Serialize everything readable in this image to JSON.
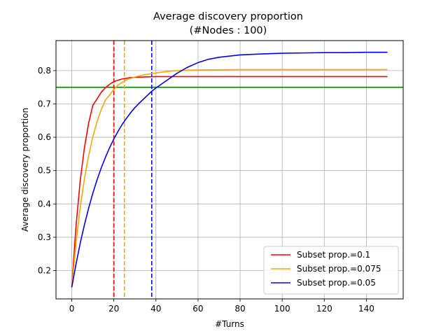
{
  "chart_data": {
    "type": "line",
    "title": "Average discovery proportion",
    "subtitle": "(#Nodes : 100)",
    "xlabel": "#Turns",
    "ylabel": "Average discovery proportion",
    "xlim": [
      -7.5,
      157.5
    ],
    "ylim": [
      0.115,
      0.89
    ],
    "xticks": [
      0,
      20,
      40,
      60,
      80,
      100,
      120,
      140
    ],
    "yticks": [
      0.2,
      0.3,
      0.4,
      0.5,
      0.6,
      0.7,
      0.8
    ],
    "grid": true,
    "legend_position": "bottom-right",
    "series": [
      {
        "name": "Subset prop.=0.1",
        "color": "#ff0000",
        "x": [
          0,
          2,
          4,
          6,
          8,
          10,
          12,
          14,
          16,
          18,
          20,
          22,
          24,
          26,
          28,
          30,
          35,
          40,
          50,
          60,
          80,
          100,
          120,
          150
        ],
        "y": [
          0.15,
          0.333,
          0.469,
          0.568,
          0.642,
          0.696,
          0.715,
          0.735,
          0.749,
          0.759,
          0.767,
          0.771,
          0.775,
          0.777,
          0.779,
          0.78,
          0.781,
          0.782,
          0.782,
          0.782,
          0.782,
          0.782,
          0.782,
          0.782
        ]
      },
      {
        "name": "Subset prop.=0.075",
        "color": "#ffa500",
        "x": [
          0,
          2,
          4,
          6,
          8,
          10,
          12,
          14,
          16,
          18,
          20,
          22,
          24,
          26,
          28,
          30,
          35,
          40,
          45,
          50,
          60,
          80,
          100,
          120,
          150
        ],
        "y": [
          0.15,
          0.282,
          0.389,
          0.475,
          0.545,
          0.601,
          0.647,
          0.683,
          0.712,
          0.727,
          0.744,
          0.757,
          0.765,
          0.772,
          0.777,
          0.781,
          0.788,
          0.793,
          0.797,
          0.8,
          0.802,
          0.803,
          0.803,
          0.803,
          0.803
        ]
      },
      {
        "name": "Subset prop.=0.05",
        "color": "#0000ff",
        "x": [
          0,
          2,
          4,
          6,
          8,
          10,
          12,
          14,
          16,
          18,
          20,
          22,
          24,
          26,
          28,
          30,
          32,
          34,
          36,
          38,
          40,
          45,
          50,
          55,
          60,
          65,
          70,
          80,
          90,
          100,
          110,
          120,
          130,
          140,
          150
        ],
        "y": [
          0.15,
          0.219,
          0.282,
          0.337,
          0.387,
          0.432,
          0.472,
          0.508,
          0.54,
          0.569,
          0.595,
          0.618,
          0.639,
          0.657,
          0.674,
          0.689,
          0.702,
          0.714,
          0.726,
          0.738,
          0.748,
          0.77,
          0.792,
          0.81,
          0.824,
          0.834,
          0.84,
          0.847,
          0.85,
          0.852,
          0.853,
          0.854,
          0.854,
          0.855,
          0.855
        ]
      }
    ],
    "vlines": [
      {
        "x": 20,
        "color": "#ff0000",
        "style": "dashed"
      },
      {
        "x": 25,
        "color": "#ffa500",
        "style": "dashed"
      },
      {
        "x": 38,
        "color": "#0000ff",
        "style": "dashed"
      }
    ],
    "hlines": [
      {
        "y": 0.75,
        "color": "#008000",
        "style": "solid"
      }
    ]
  }
}
